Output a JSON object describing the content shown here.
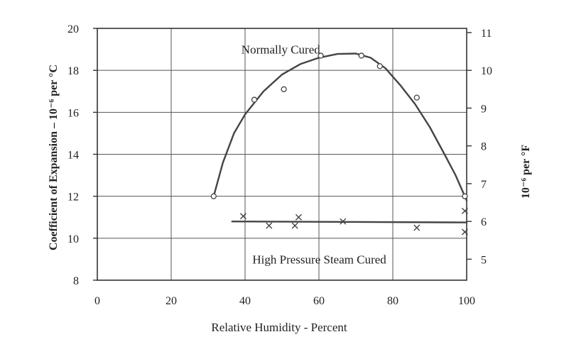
{
  "chart_data": {
    "type": "scatter",
    "title": "",
    "xlabel": "Relative Humidity - Percent",
    "ylabel_left": "Coefficient of Expansion – 10⁻⁶ per °C",
    "ylabel_right": "10⁻⁶ per °F",
    "xlim": [
      0,
      100
    ],
    "ylim_left": [
      8,
      20
    ],
    "ylim_right": [
      4.444,
      11.111
    ],
    "x_ticks": [
      0,
      20,
      40,
      60,
      80,
      100
    ],
    "y_ticks_left": [
      8,
      10,
      12,
      14,
      16,
      18,
      20
    ],
    "y_ticks_right": [
      5,
      6,
      7,
      8,
      9,
      10,
      11
    ],
    "grid": true,
    "legend": "none",
    "annotations": [
      {
        "text": "Normally Cured",
        "x": 39,
        "y": 19.0
      },
      {
        "text": "High Pressure Steam Cured",
        "x": 42,
        "y": 9.0
      }
    ],
    "series": [
      {
        "name": "Normally Cured",
        "marker": "circle",
        "points": [
          {
            "x": 31.5,
            "y": 12.0
          },
          {
            "x": 42.5,
            "y": 16.6
          },
          {
            "x": 50.5,
            "y": 17.1
          },
          {
            "x": 60.5,
            "y": 18.7
          },
          {
            "x": 71.5,
            "y": 18.7
          },
          {
            "x": 76.5,
            "y": 18.2
          },
          {
            "x": 86.5,
            "y": 16.7
          },
          {
            "x": 99.5,
            "y": 12.0
          }
        ],
        "fit_curve": [
          {
            "x": 31.5,
            "y": 12.0
          },
          {
            "x": 34,
            "y": 13.6
          },
          {
            "x": 37,
            "y": 15.0
          },
          {
            "x": 40,
            "y": 15.9
          },
          {
            "x": 45,
            "y": 17.0
          },
          {
            "x": 50,
            "y": 17.8
          },
          {
            "x": 55,
            "y": 18.3
          },
          {
            "x": 60,
            "y": 18.6
          },
          {
            "x": 65,
            "y": 18.78
          },
          {
            "x": 70,
            "y": 18.8
          },
          {
            "x": 74,
            "y": 18.6
          },
          {
            "x": 78,
            "y": 18.1
          },
          {
            "x": 82,
            "y": 17.3
          },
          {
            "x": 86,
            "y": 16.4
          },
          {
            "x": 90,
            "y": 15.3
          },
          {
            "x": 94,
            "y": 14.0
          },
          {
            "x": 97,
            "y": 13.0
          },
          {
            "x": 100,
            "y": 11.8
          }
        ]
      },
      {
        "name": "High Pressure Steam Cured",
        "marker": "x",
        "points": [
          {
            "x": 39.5,
            "y": 11.05
          },
          {
            "x": 46.5,
            "y": 10.6
          },
          {
            "x": 53.5,
            "y": 10.6
          },
          {
            "x": 54.5,
            "y": 11.0
          },
          {
            "x": 66.5,
            "y": 10.8
          },
          {
            "x": 86.5,
            "y": 10.5
          },
          {
            "x": 99.5,
            "y": 11.3
          },
          {
            "x": 99.5,
            "y": 10.3
          }
        ],
        "fit_line": [
          {
            "x": 36.5,
            "y": 10.8
          },
          {
            "x": 100,
            "y": 10.75
          }
        ]
      }
    ]
  }
}
